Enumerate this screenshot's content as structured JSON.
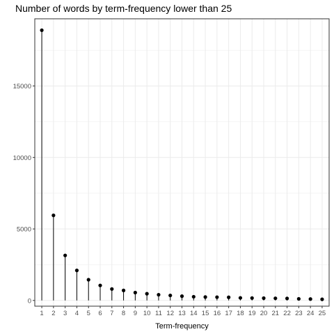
{
  "chart_data": {
    "type": "lollipop",
    "title": "Number of words by term-frequency lower than 25",
    "xlabel": "Term-frequency",
    "ylabel": "",
    "categories": [
      "1",
      "2",
      "3",
      "4",
      "5",
      "6",
      "7",
      "8",
      "9",
      "10",
      "11",
      "12",
      "13",
      "14",
      "15",
      "16",
      "17",
      "18",
      "19",
      "20",
      "21",
      "22",
      "23",
      "24",
      "25"
    ],
    "values": [
      18900,
      5950,
      3150,
      2100,
      1450,
      1050,
      800,
      700,
      550,
      470,
      400,
      350,
      300,
      260,
      240,
      230,
      220,
      180,
      170,
      160,
      150,
      140,
      110,
      100,
      80
    ],
    "ylim": [
      -400,
      19700
    ],
    "yticks": [
      0,
      5000,
      10000,
      15000
    ],
    "grid": true,
    "legend": "none",
    "colors": {
      "mark": "#000000",
      "grid": "#ebebeb",
      "panel_border": "#333333",
      "tick_label": "#4d4d4d"
    }
  }
}
